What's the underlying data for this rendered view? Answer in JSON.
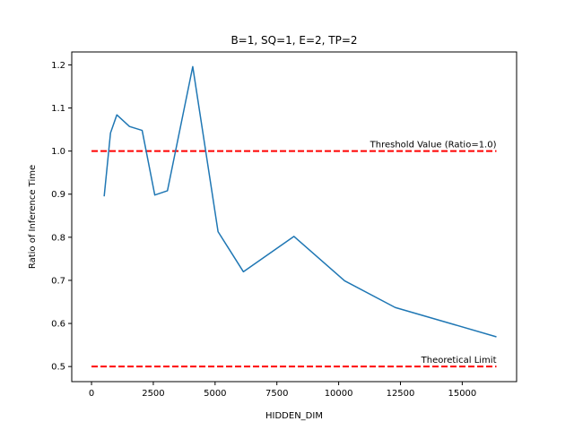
{
  "chart_data": {
    "type": "line",
    "title": "B=1, SQ=1, E=2, TP=2",
    "xlabel": "HIDDEN_DIM",
    "ylabel": "Ratio of Inference Time",
    "xlim": [
      -800,
      17200
    ],
    "ylim": [
      0.465,
      1.23
    ],
    "xticks": [
      0,
      2500,
      5000,
      7500,
      10000,
      12500,
      15000
    ],
    "yticks": [
      0.5,
      0.6,
      0.7,
      0.8,
      0.9,
      1.0,
      1.1,
      1.2
    ],
    "ytick_labels": [
      "0.5",
      "0.6",
      "0.7",
      "0.8",
      "0.9",
      "1.0",
      "1.1",
      "1.2"
    ],
    "grid": false,
    "series": [
      {
        "color": "#1f77b4",
        "x": [
          512,
          768,
          1024,
          1536,
          2048,
          2560,
          3072,
          4096,
          5120,
          6144,
          8192,
          10240,
          12288,
          16384
        ],
        "y": [
          0.895,
          1.042,
          1.084,
          1.057,
          1.048,
          0.898,
          0.908,
          1.196,
          0.813,
          0.72,
          0.802,
          0.699,
          0.637,
          0.569
        ]
      }
    ],
    "reference_lines": [
      {
        "y": 1.0,
        "x_from": 0,
        "x_to": 16384,
        "color": "#ff0000",
        "label": "Threshold Value (Ratio=1.0)"
      },
      {
        "y": 0.5,
        "x_from": 0,
        "x_to": 16384,
        "color": "#ff0000",
        "label": "Theoretical Limit"
      }
    ]
  }
}
